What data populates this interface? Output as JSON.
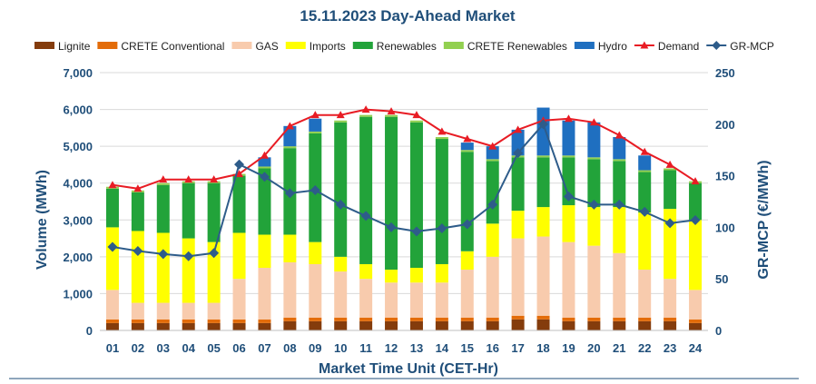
{
  "chart_data": {
    "type": "bar",
    "title": "15.11.2023  Day-Ahead Market",
    "xlabel": "Market Time Unit (CET-Hr)",
    "ylabel": "Volume (MWh)",
    "y2label": "GR-MCP (€/MWh)",
    "ylim": [
      0,
      7000
    ],
    "y2lim": [
      0,
      250
    ],
    "yticks": [
      "0",
      "1,000",
      "2,000",
      "3,000",
      "4,000",
      "5,000",
      "6,000",
      "7,000"
    ],
    "y2ticks": [
      "0",
      "50",
      "100",
      "150",
      "200",
      "250"
    ],
    "categories": [
      "01",
      "02",
      "03",
      "04",
      "05",
      "06",
      "07",
      "08",
      "09",
      "10",
      "11",
      "12",
      "13",
      "14",
      "15",
      "16",
      "17",
      "18",
      "19",
      "20",
      "21",
      "22",
      "23",
      "24"
    ],
    "stacked_series": [
      {
        "name": "Lignite",
        "color": "#843c0c",
        "values": [
          200,
          200,
          200,
          200,
          200,
          200,
          200,
          250,
          250,
          250,
          250,
          250,
          250,
          250,
          250,
          250,
          300,
          300,
          250,
          250,
          250,
          250,
          250,
          200
        ]
      },
      {
        "name": "CRETE Conventional",
        "color": "#e36c09",
        "values": [
          100,
          100,
          100,
          100,
          100,
          100,
          100,
          100,
          100,
          100,
          100,
          100,
          100,
          100,
          100,
          100,
          100,
          100,
          100,
          100,
          100,
          100,
          100,
          100
        ]
      },
      {
        "name": "GAS",
        "color": "#f8cbad",
        "values": [
          800,
          450,
          450,
          450,
          450,
          1100,
          1400,
          1500,
          1450,
          1250,
          1050,
          950,
          950,
          950,
          1300,
          1650,
          2100,
          2150,
          2050,
          1950,
          1750,
          1300,
          1050,
          800
        ]
      },
      {
        "name": "Imports",
        "color": "#ffff00",
        "values": [
          1700,
          1950,
          1900,
          1750,
          1650,
          1250,
          900,
          750,
          600,
          400,
          400,
          350,
          400,
          500,
          500,
          900,
          750,
          800,
          1000,
          1050,
          1250,
          1550,
          1900,
          1900
        ]
      },
      {
        "name": "Renewables",
        "color": "#22a33a",
        "values": [
          1050,
          1050,
          1300,
          1500,
          1600,
          1550,
          1800,
          2350,
          2950,
          3650,
          4000,
          4150,
          3950,
          3400,
          2700,
          1700,
          1450,
          1350,
          1300,
          1300,
          1250,
          1100,
          1050,
          1000
        ]
      },
      {
        "name": "CRETE Renewables",
        "color": "#92d050",
        "values": [
          50,
          50,
          50,
          50,
          50,
          50,
          50,
          50,
          50,
          50,
          50,
          50,
          50,
          50,
          50,
          50,
          50,
          50,
          50,
          50,
          50,
          50,
          50,
          50
        ]
      },
      {
        "name": "Hydro",
        "color": "#1f6fc0",
        "values": [
          0,
          0,
          0,
          0,
          0,
          0,
          250,
          550,
          350,
          0,
          0,
          0,
          0,
          0,
          200,
          350,
          700,
          1300,
          950,
          950,
          600,
          400,
          0,
          0
        ]
      }
    ],
    "lines": [
      {
        "name": "Demand",
        "axis": "left",
        "color": "#e81c24",
        "marker": "triangle",
        "values": [
          3950,
          3850,
          4100,
          4100,
          4100,
          4250,
          4750,
          5550,
          5850,
          5850,
          6000,
          5950,
          5850,
          5400,
          5200,
          5000,
          5450,
          5700,
          5750,
          5650,
          5300,
          4850,
          4500,
          4050
        ]
      },
      {
        "name": "GR-MCP",
        "axis": "right",
        "color": "#2e5c8a",
        "marker": "diamond",
        "values": [
          81,
          77,
          74,
          72,
          75,
          161,
          149,
          133,
          136,
          122,
          111,
          100,
          96,
          99,
          103,
          122,
          172,
          200,
          130,
          122,
          122,
          115,
          104,
          107
        ]
      }
    ],
    "legend": {
      "position": "top",
      "entries": [
        "Lignite",
        "CRETE Conventional",
        "GAS",
        "Imports",
        "Renewables",
        "CRETE Renewables",
        "Hydro",
        "Demand",
        "GR-MCP"
      ]
    },
    "grid": true
  }
}
